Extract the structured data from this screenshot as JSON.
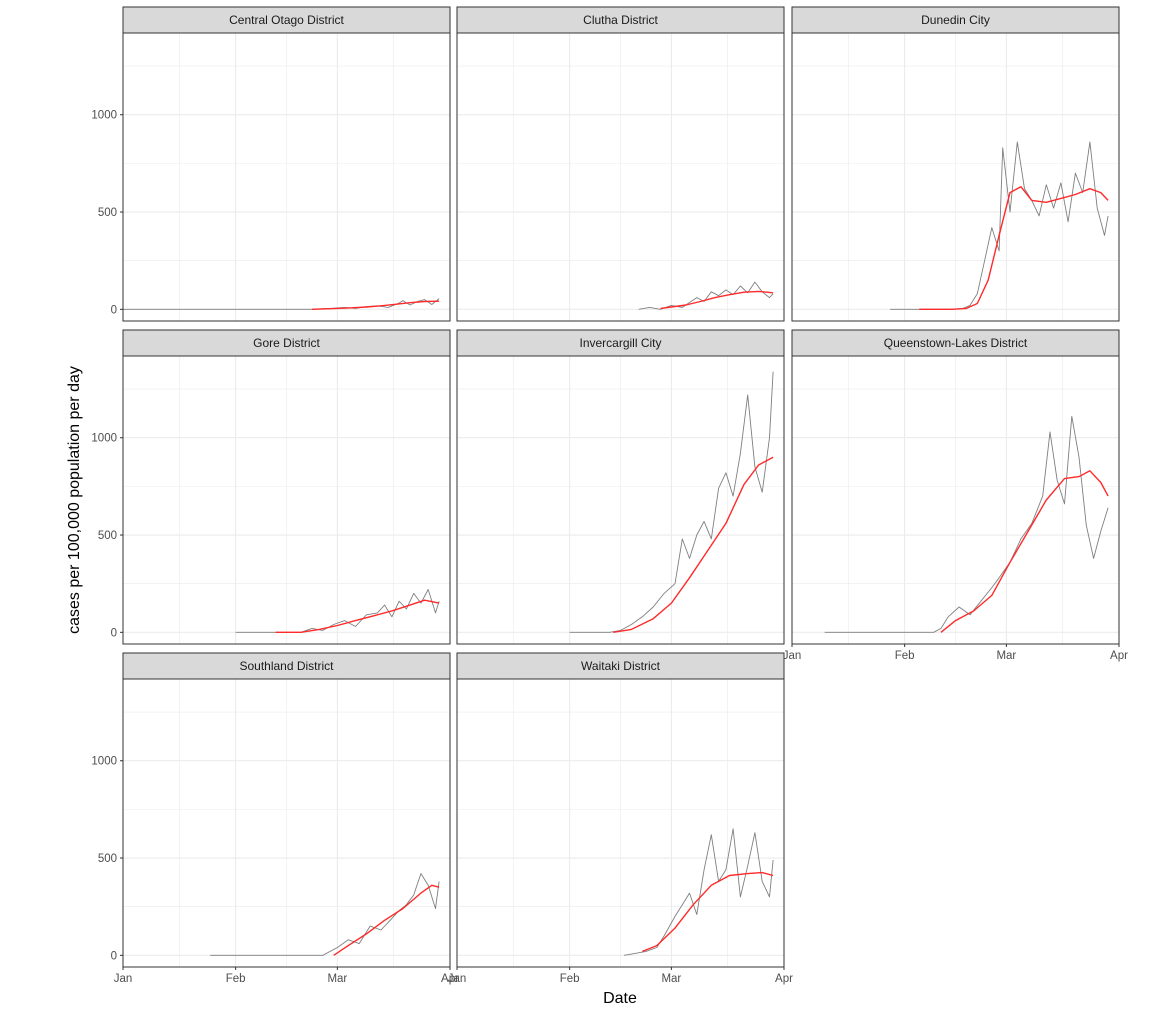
{
  "chart_data": {
    "type": "line",
    "xlabel": "Date",
    "ylabel": "cases per 100,000 population per day",
    "x_type": "date",
    "x_range": [
      "2022-01-01",
      "2022-04-01"
    ],
    "x_ticks": [
      "2022-01-01",
      "2022-02-01",
      "2022-03-01",
      "2022-04-01"
    ],
    "x_tick_labels": [
      "Jan",
      "Feb",
      "Mar",
      "Apr"
    ],
    "ylim": [
      -60,
      1420
    ],
    "y_ticks": [
      0,
      500,
      1000
    ],
    "y_tick_labels": [
      "0",
      "500",
      "1000"
    ],
    "grid": true,
    "legend": "none",
    "colors": {
      "daily": "#7f7f7f",
      "smoothed": "#ff2a2a",
      "strip_fill": "#d9d9d9",
      "strip_border": "#333333",
      "panel_border": "#333333",
      "grid": "#ebebeb"
    },
    "facets": [
      {
        "title": "Central Otago District",
        "series": [
          {
            "x": [
              "2022-01-01",
              "2022-01-15",
              "2022-02-01",
              "2022-02-15",
              "2022-02-22",
              "2022-02-25",
              "2022-02-28",
              "2022-03-03",
              "2022-03-06",
              "2022-03-09",
              "2022-03-12",
              "2022-03-15",
              "2022-03-18",
              "2022-03-19",
              "2022-03-21",
              "2022-03-23",
              "2022-03-25",
              "2022-03-27",
              "2022-03-29"
            ],
            "y": [
              0,
              0,
              0,
              0,
              0,
              3,
              6,
              10,
              5,
              14,
              18,
              10,
              32,
              45,
              22,
              40,
              50,
              25,
              55
            ]
          },
          {
            "x": [
              "2022-02-22",
              "2022-02-25",
              "2022-03-01",
              "2022-03-05",
              "2022-03-09",
              "2022-03-13",
              "2022-03-17",
              "2022-03-21",
              "2022-03-25",
              "2022-03-29"
            ],
            "y": [
              0,
              2,
              5,
              8,
              12,
              18,
              26,
              34,
              40,
              42
            ]
          }
        ]
      },
      {
        "title": "Clutha District",
        "series": [
          {
            "x": [
              "2022-02-20",
              "2022-02-23",
              "2022-02-26",
              "2022-03-01",
              "2022-03-04",
              "2022-03-06",
              "2022-03-08",
              "2022-03-10",
              "2022-03-12",
              "2022-03-14",
              "2022-03-16",
              "2022-03-18",
              "2022-03-20",
              "2022-03-22",
              "2022-03-24",
              "2022-03-26",
              "2022-03-28",
              "2022-03-29"
            ],
            "y": [
              0,
              10,
              0,
              20,
              10,
              35,
              60,
              40,
              90,
              70,
              100,
              75,
              120,
              85,
              140,
              90,
              60,
              80
            ]
          },
          {
            "x": [
              "2022-02-26",
              "2022-03-01",
              "2022-03-05",
              "2022-03-09",
              "2022-03-13",
              "2022-03-17",
              "2022-03-21",
              "2022-03-25",
              "2022-03-29"
            ],
            "y": [
              5,
              12,
              22,
              40,
              60,
              75,
              88,
              92,
              85
            ]
          }
        ]
      },
      {
        "title": "Dunedin City",
        "series": [
          {
            "x": [
              "2022-01-28",
              "2022-02-05",
              "2022-02-14",
              "2022-02-17",
              "2022-02-19",
              "2022-02-21",
              "2022-02-23",
              "2022-02-25",
              "2022-02-27",
              "2022-02-28",
              "2022-03-02",
              "2022-03-04",
              "2022-03-06",
              "2022-03-08",
              "2022-03-10",
              "2022-03-12",
              "2022-03-14",
              "2022-03-16",
              "2022-03-18",
              "2022-03-20",
              "2022-03-22",
              "2022-03-24",
              "2022-03-26",
              "2022-03-28",
              "2022-03-29"
            ],
            "y": [
              0,
              0,
              0,
              5,
              20,
              80,
              250,
              420,
              300,
              830,
              500,
              860,
              620,
              560,
              480,
              640,
              520,
              650,
              450,
              700,
              600,
              860,
              520,
              380,
              480
            ]
          },
          {
            "x": [
              "2022-02-05",
              "2022-02-14",
              "2022-02-18",
              "2022-02-21",
              "2022-02-24",
              "2022-02-27",
              "2022-03-02",
              "2022-03-05",
              "2022-03-08",
              "2022-03-12",
              "2022-03-16",
              "2022-03-20",
              "2022-03-24",
              "2022-03-27",
              "2022-03-29"
            ],
            "y": [
              0,
              0,
              5,
              30,
              150,
              380,
              600,
              630,
              560,
              550,
              570,
              590,
              620,
              600,
              560
            ]
          }
        ]
      },
      {
        "title": "Gore District",
        "series": [
          {
            "x": [
              "2022-02-01",
              "2022-02-10",
              "2022-02-19",
              "2022-02-22",
              "2022-02-25",
              "2022-02-28",
              "2022-03-03",
              "2022-03-06",
              "2022-03-09",
              "2022-03-12",
              "2022-03-14",
              "2022-03-16",
              "2022-03-18",
              "2022-03-20",
              "2022-03-22",
              "2022-03-24",
              "2022-03-26",
              "2022-03-28",
              "2022-03-29"
            ],
            "y": [
              0,
              0,
              0,
              20,
              10,
              40,
              60,
              30,
              90,
              100,
              140,
              80,
              160,
              120,
              200,
              150,
              220,
              100,
              160
            ]
          },
          {
            "x": [
              "2022-02-12",
              "2022-02-19",
              "2022-02-24",
              "2022-03-01",
              "2022-03-06",
              "2022-03-11",
              "2022-03-16",
              "2022-03-21",
              "2022-03-25",
              "2022-03-29"
            ],
            "y": [
              0,
              0,
              15,
              35,
              60,
              85,
              110,
              140,
              165,
              150
            ]
          }
        ]
      },
      {
        "title": "Invercargill City",
        "series": [
          {
            "x": [
              "2022-02-01",
              "2022-02-12",
              "2022-02-15",
              "2022-02-18",
              "2022-02-21",
              "2022-02-24",
              "2022-02-27",
              "2022-03-02",
              "2022-03-04",
              "2022-03-06",
              "2022-03-08",
              "2022-03-10",
              "2022-03-12",
              "2022-03-14",
              "2022-03-16",
              "2022-03-18",
              "2022-03-20",
              "2022-03-22",
              "2022-03-24",
              "2022-03-26",
              "2022-03-28",
              "2022-03-29"
            ],
            "y": [
              0,
              0,
              10,
              40,
              80,
              130,
              200,
              250,
              480,
              380,
              500,
              570,
              480,
              740,
              820,
              700,
              920,
              1220,
              850,
              720,
              1000,
              1340
            ]
          },
          {
            "x": [
              "2022-02-13",
              "2022-02-18",
              "2022-02-24",
              "2022-03-01",
              "2022-03-06",
              "2022-03-11",
              "2022-03-16",
              "2022-03-21",
              "2022-03-25",
              "2022-03-29"
            ],
            "y": [
              0,
              15,
              70,
              150,
              280,
              420,
              560,
              760,
              860,
              900
            ]
          }
        ]
      },
      {
        "title": "Queenstown-Lakes District",
        "series": [
          {
            "x": [
              "2022-01-10",
              "2022-01-25",
              "2022-02-09",
              "2022-02-11",
              "2022-02-13",
              "2022-02-16",
              "2022-02-19",
              "2022-02-22",
              "2022-02-25",
              "2022-02-27",
              "2022-03-02",
              "2022-03-05",
              "2022-03-08",
              "2022-03-11",
              "2022-03-13",
              "2022-03-15",
              "2022-03-17",
              "2022-03-19",
              "2022-03-21",
              "2022-03-23",
              "2022-03-25",
              "2022-03-27",
              "2022-03-29"
            ],
            "y": [
              0,
              0,
              0,
              20,
              80,
              130,
              90,
              160,
              230,
              280,
              360,
              480,
              560,
              700,
              1030,
              780,
              660,
              1110,
              900,
              550,
              380,
              520,
              640
            ]
          },
          {
            "x": [
              "2022-02-11",
              "2022-02-15",
              "2022-02-20",
              "2022-02-25",
              "2022-03-02",
              "2022-03-07",
              "2022-03-12",
              "2022-03-17",
              "2022-03-21",
              "2022-03-24",
              "2022-03-27",
              "2022-03-29"
            ],
            "y": [
              0,
              60,
              110,
              190,
              360,
              520,
              680,
              790,
              800,
              830,
              770,
              700
            ]
          }
        ]
      },
      {
        "title": "Southland District",
        "series": [
          {
            "x": [
              "2022-01-25",
              "2022-02-10",
              "2022-02-25",
              "2022-03-01",
              "2022-03-04",
              "2022-03-07",
              "2022-03-10",
              "2022-03-13",
              "2022-03-16",
              "2022-03-18",
              "2022-03-20",
              "2022-03-22",
              "2022-03-24",
              "2022-03-26",
              "2022-03-28",
              "2022-03-29"
            ],
            "y": [
              0,
              0,
              0,
              40,
              80,
              60,
              150,
              130,
              190,
              230,
              260,
              310,
              420,
              360,
              240,
              380
            ]
          },
          {
            "x": [
              "2022-02-28",
              "2022-03-04",
              "2022-03-09",
              "2022-03-14",
              "2022-03-19",
              "2022-03-24",
              "2022-03-27",
              "2022-03-29"
            ],
            "y": [
              0,
              50,
              110,
              180,
              240,
              320,
              360,
              350
            ]
          }
        ]
      },
      {
        "title": "Waitaki District",
        "series": [
          {
            "x": [
              "2022-02-16",
              "2022-02-19",
              "2022-02-22",
              "2022-02-25",
              "2022-02-27",
              "2022-03-02",
              "2022-03-04",
              "2022-03-06",
              "2022-03-08",
              "2022-03-10",
              "2022-03-12",
              "2022-03-14",
              "2022-03-16",
              "2022-03-18",
              "2022-03-20",
              "2022-03-22",
              "2022-03-24",
              "2022-03-26",
              "2022-03-28",
              "2022-03-29"
            ],
            "y": [
              0,
              10,
              20,
              40,
              100,
              200,
              260,
              320,
              210,
              440,
              620,
              380,
              440,
              650,
              300,
              460,
              630,
              380,
              300,
              490
            ]
          },
          {
            "x": [
              "2022-02-21",
              "2022-02-25",
              "2022-03-02",
              "2022-03-07",
              "2022-03-12",
              "2022-03-17",
              "2022-03-22",
              "2022-03-26",
              "2022-03-29"
            ],
            "y": [
              20,
              50,
              140,
              260,
              360,
              410,
              420,
              425,
              410
            ]
          }
        ]
      }
    ]
  }
}
